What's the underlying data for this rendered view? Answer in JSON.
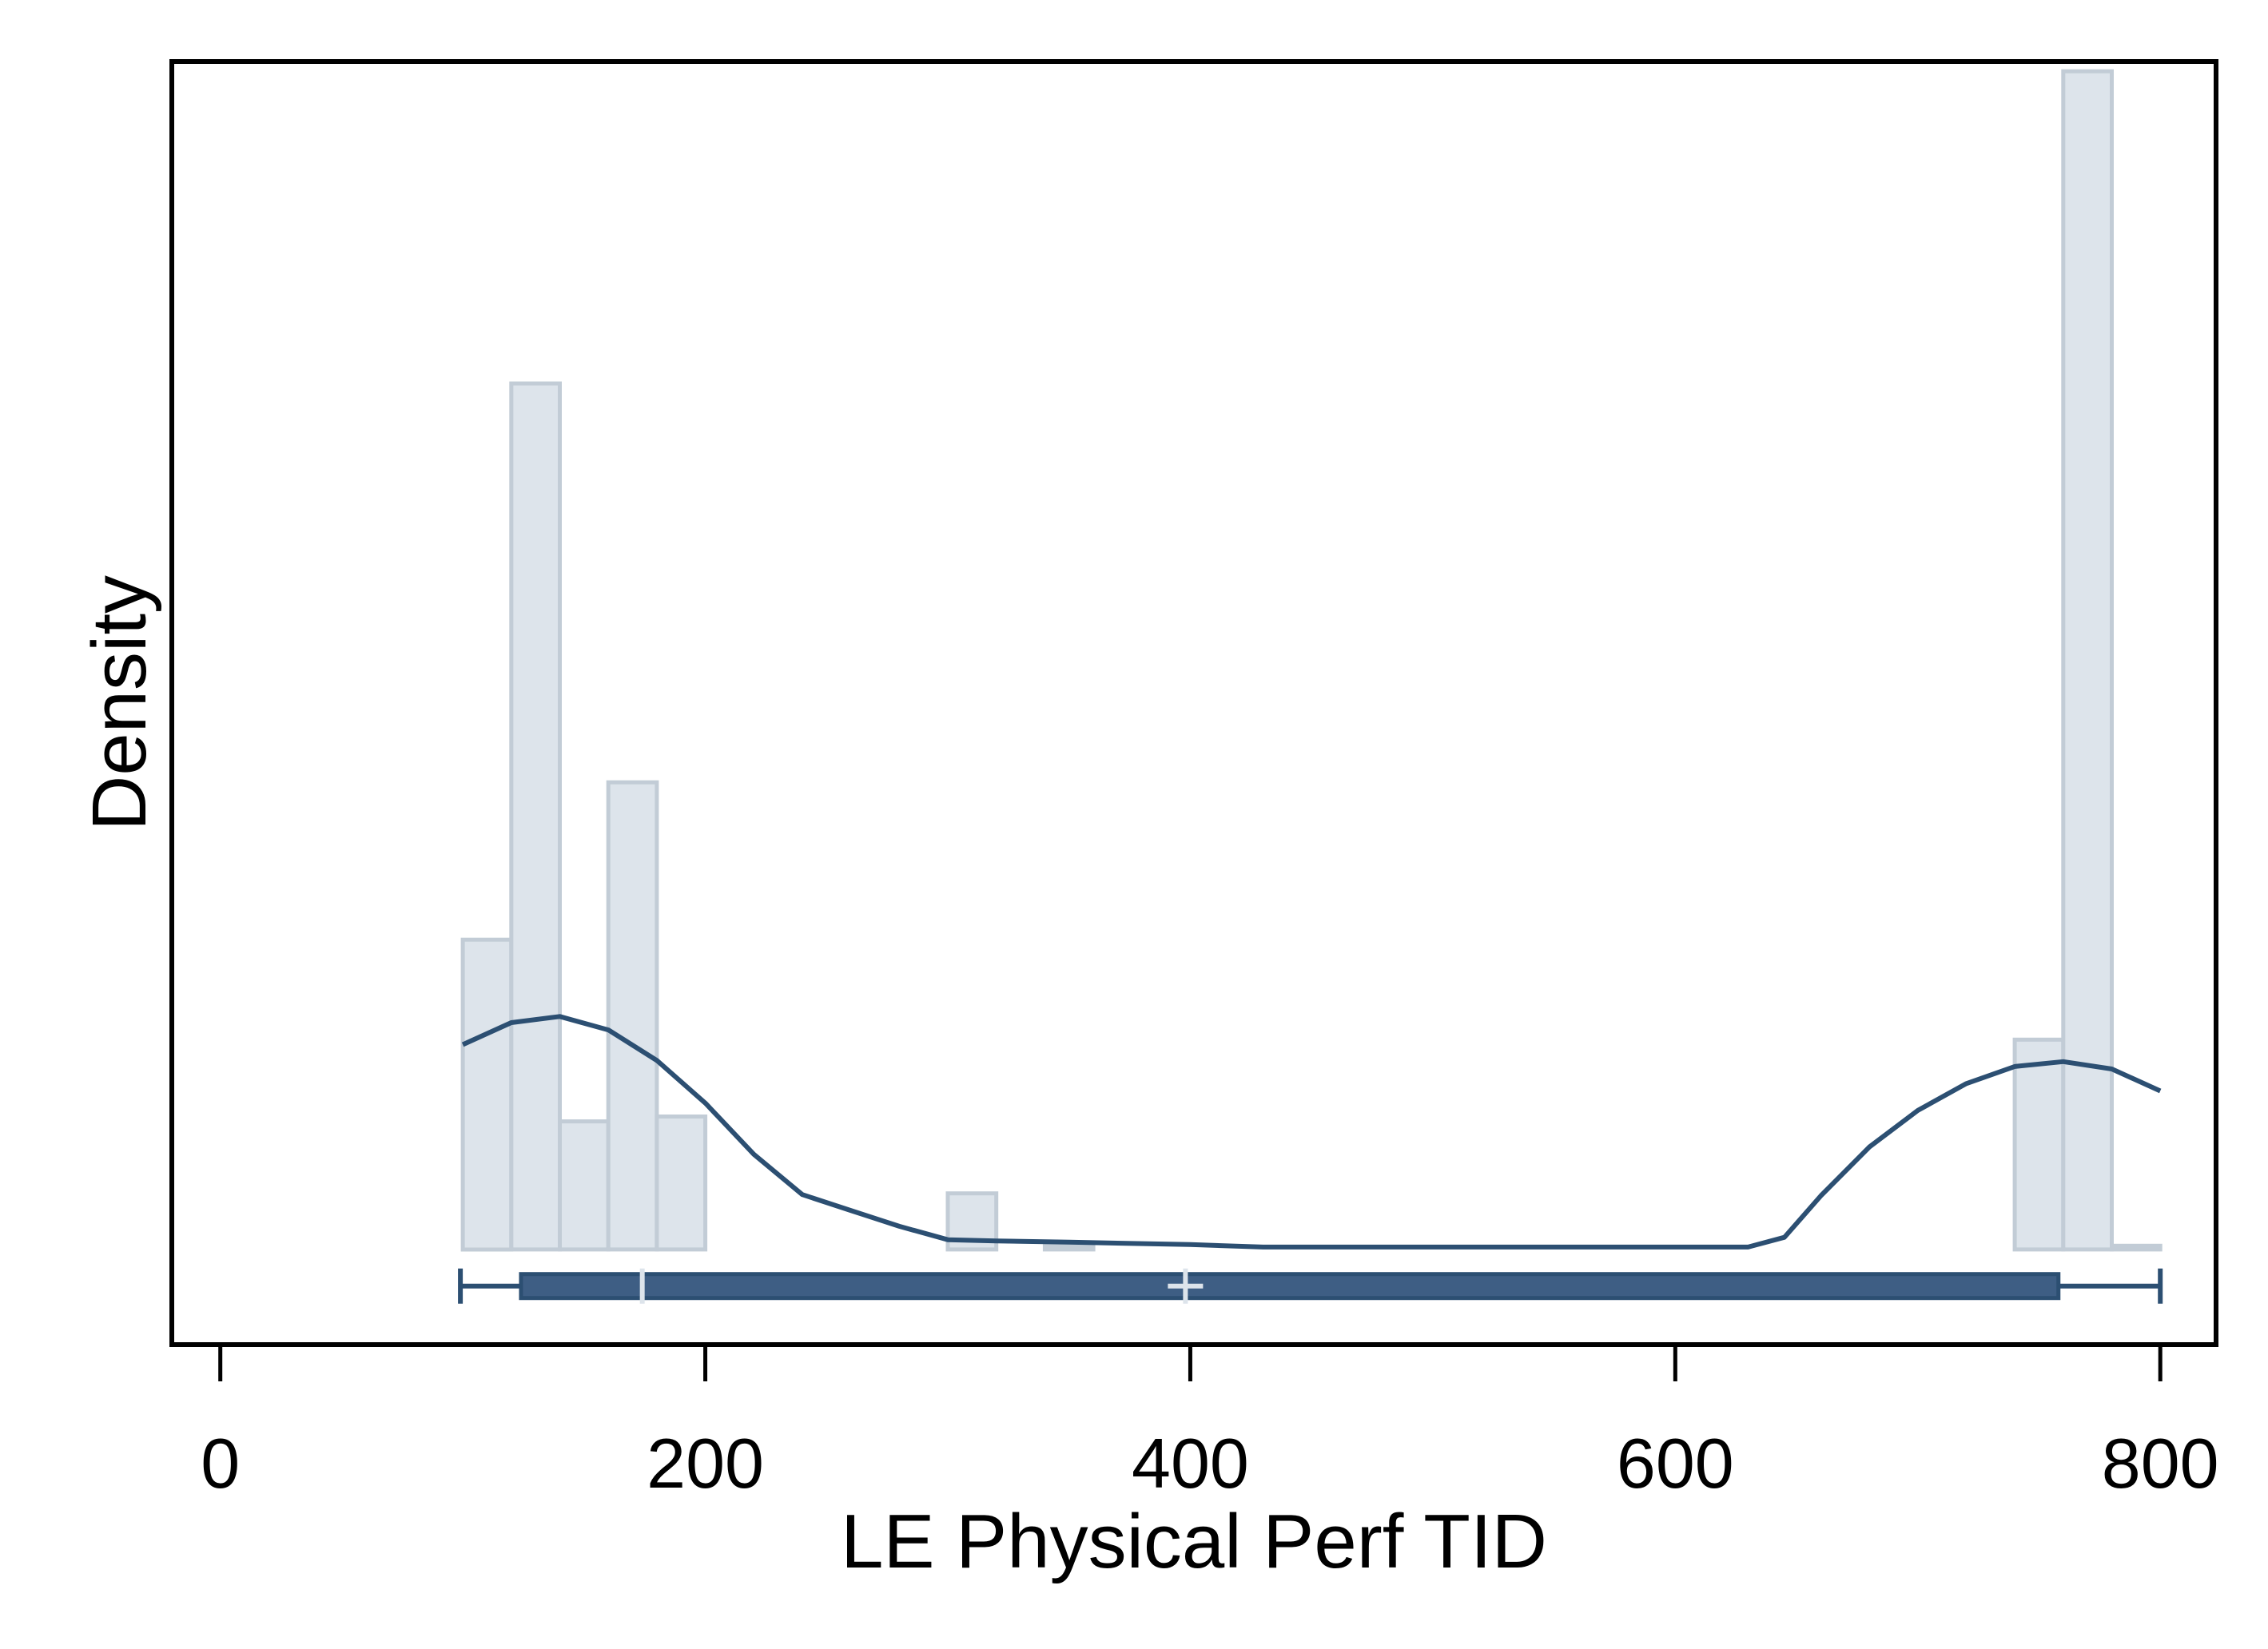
{
  "chart_data": {
    "type": "histogram",
    "title": "",
    "xlabel": "LE Physical Perf TID",
    "ylabel": "Density",
    "xlim": [
      -20,
      823
    ],
    "ylim": [
      -0.00078,
      0.00974
    ],
    "x_ticks": [
      {
        "value": 0,
        "label": "0"
      },
      {
        "value": 200,
        "label": "200"
      },
      {
        "value": 400,
        "label": "400"
      },
      {
        "value": 600,
        "label": "600"
      },
      {
        "value": 800,
        "label": "800"
      }
    ],
    "y_ticks_shown": false,
    "bin_width": 20,
    "bins": [
      {
        "x0": 100,
        "x1": 120,
        "density": 0.00254
      },
      {
        "x0": 120,
        "x1": 140,
        "density": 0.0071
      },
      {
        "x0": 140,
        "x1": 160,
        "density": 0.00105
      },
      {
        "x0": 160,
        "x1": 180,
        "density": 0.00383
      },
      {
        "x0": 180,
        "x1": 200,
        "density": 0.00109
      },
      {
        "x0": 300,
        "x1": 320,
        "density": 0.00046
      },
      {
        "x0": 340,
        "x1": 360,
        "density": 3e-05
      },
      {
        "x0": 740,
        "x1": 760,
        "density": 0.00172
      },
      {
        "x0": 760,
        "x1": 780,
        "density": 0.00966
      },
      {
        "x0": 780,
        "x1": 800,
        "density": 3e-05
      }
    ],
    "kde": [
      [
        100,
        0.00168
      ],
      [
        120,
        0.00186
      ],
      [
        140,
        0.00191
      ],
      [
        160,
        0.0018
      ],
      [
        180,
        0.00155
      ],
      [
        200,
        0.0012
      ],
      [
        220,
        0.00078
      ],
      [
        240,
        0.00045
      ],
      [
        260,
        0.00032
      ],
      [
        280,
        0.00019
      ],
      [
        300,
        8e-05
      ],
      [
        320,
        7e-05
      ],
      [
        350,
        6e-05
      ],
      [
        400,
        4e-05
      ],
      [
        430,
        2e-05
      ],
      [
        500,
        2e-05
      ],
      [
        630,
        2e-05
      ],
      [
        645,
        0.0001
      ],
      [
        660,
        0.00044
      ],
      [
        680,
        0.00084
      ],
      [
        700,
        0.00114
      ],
      [
        720,
        0.00136
      ],
      [
        740,
        0.0015
      ],
      [
        760,
        0.00154
      ],
      [
        780,
        0.00148
      ],
      [
        800,
        0.0013
      ]
    ],
    "boxplot": {
      "y": -0.0003,
      "min": 99,
      "q1": 124,
      "median": 174,
      "mean": 398,
      "q3": 758,
      "max": 800
    },
    "grid": false,
    "legend": "none",
    "colors": {
      "bar_fill": "#dde4eb",
      "bar_stroke": "#c2ccd6",
      "kde_line": "#2c4f72",
      "box_fill": "#3e5e84",
      "box_stroke": "#2c4f72",
      "box_marker": "#dde4eb",
      "axis": "#000000"
    }
  }
}
